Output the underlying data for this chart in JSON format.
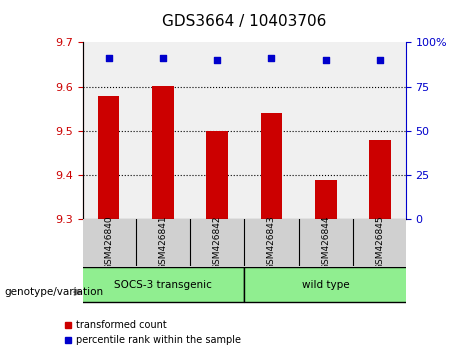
{
  "title": "GDS3664 / 10403706",
  "samples": [
    "GSM426840",
    "GSM426841",
    "GSM426842",
    "GSM426843",
    "GSM426844",
    "GSM426845"
  ],
  "red_values": [
    9.578,
    9.601,
    9.5,
    9.54,
    9.39,
    9.48
  ],
  "blue_values": [
    91,
    91,
    90,
    91,
    90,
    90
  ],
  "ylim_left": [
    9.3,
    9.7
  ],
  "ylim_right": [
    0,
    100
  ],
  "yticks_left": [
    9.3,
    9.4,
    9.5,
    9.6,
    9.7
  ],
  "yticks_right": [
    0,
    25,
    50,
    75,
    100
  ],
  "ytick_labels_right": [
    "0",
    "25",
    "50",
    "75",
    "100%"
  ],
  "grid_values": [
    9.4,
    9.5,
    9.6
  ],
  "groups": [
    {
      "label": "SOCS-3 transgenic",
      "indices": [
        0,
        1,
        2
      ],
      "color": "#90EE90"
    },
    {
      "label": "wild type",
      "indices": [
        3,
        4,
        5
      ],
      "color": "#90EE90"
    }
  ],
  "bar_color": "#CC0000",
  "dot_color": "#0000CC",
  "bar_width": 0.4,
  "xlabel_color": "black",
  "left_tick_color": "#CC0000",
  "right_tick_color": "#0000CC",
  "background_plot": "#f0f0f0",
  "background_label": "#d0d0d0",
  "genotype_label": "genotype/variation"
}
